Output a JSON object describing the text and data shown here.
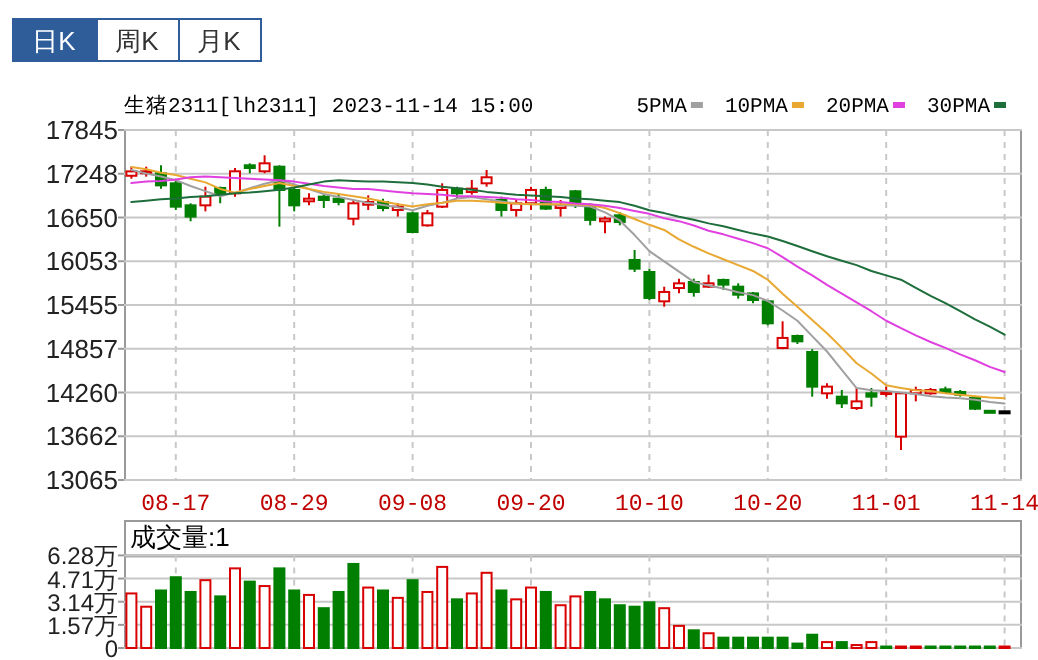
{
  "chart_data": [
    {
      "type": "candlestick",
      "title": "生猪2311[lh2311] 2023-11-14 15:00",
      "annotations": [
        "日K",
        "周K",
        "月K"
      ],
      "categories": [
        null,
        null,
        null,
        "08-17",
        null,
        null,
        null,
        null,
        null,
        null,
        null,
        "08-29",
        null,
        null,
        null,
        null,
        null,
        null,
        null,
        "09-08",
        null,
        null,
        null,
        null,
        null,
        null,
        null,
        "09-20",
        null,
        null,
        null,
        null,
        null,
        null,
        null,
        "10-10",
        null,
        null,
        null,
        null,
        null,
        null,
        null,
        "10-20",
        null,
        null,
        null,
        null,
        null,
        null,
        null,
        "11-01",
        null,
        null,
        null,
        null,
        null,
        null,
        null,
        "11-14"
      ],
      "ohlc": [
        [
          17220,
          17344,
          17180,
          17280
        ],
        [
          17254,
          17344,
          17208,
          17281
        ],
        [
          17254,
          17363,
          17044,
          17089
        ],
        [
          17117,
          17162,
          16753,
          16798
        ],
        [
          16816,
          16844,
          16598,
          16662
        ],
        [
          16816,
          17071,
          16734,
          16935
        ],
        [
          17053,
          17071,
          16844,
          16962
        ],
        [
          16980,
          17326,
          16935,
          17281
        ],
        [
          17363,
          17390,
          17254,
          17326
        ],
        [
          17281,
          17499,
          17254,
          17390
        ],
        [
          17344,
          17363,
          16525,
          17026
        ],
        [
          17026,
          17071,
          16734,
          16816
        ],
        [
          16871,
          16980,
          16816,
          16907
        ],
        [
          16935,
          16962,
          16780,
          16889
        ],
        [
          16907,
          16980,
          16816,
          16862
        ],
        [
          16634,
          16889,
          16543,
          16844
        ],
        [
          16825,
          16953,
          16753,
          16862
        ],
        [
          16862,
          16907,
          16734,
          16780
        ],
        [
          16753,
          16844,
          16662,
          16798
        ],
        [
          16707,
          16734,
          16434,
          16452
        ],
        [
          16543,
          16753,
          16525,
          16707
        ],
        [
          16798,
          17117,
          16780,
          17026
        ],
        [
          17044,
          17071,
          16907,
          16980
        ],
        [
          16998,
          17162,
          16962,
          17044
        ],
        [
          17117,
          17299,
          17071,
          17199
        ],
        [
          16889,
          16935,
          16662,
          16753
        ],
        [
          16753,
          16889,
          16662,
          16844
        ],
        [
          16844,
          17071,
          16753,
          17026
        ],
        [
          17026,
          17071,
          16753,
          16771
        ],
        [
          16780,
          16889,
          16662,
          16816
        ],
        [
          17008,
          17026,
          16780,
          16825
        ],
        [
          16798,
          16844,
          16543,
          16617
        ],
        [
          16598,
          16662,
          16434,
          16634
        ],
        [
          16680,
          16725,
          16543,
          16589
        ],
        [
          16070,
          16206,
          15906,
          15951
        ],
        [
          15906,
          15951,
          15523,
          15551
        ],
        [
          15505,
          15705,
          15432,
          15633
        ],
        [
          15687,
          15815,
          15614,
          15751
        ],
        [
          15769,
          15815,
          15569,
          15633
        ],
        [
          15705,
          15869,
          15687,
          15751
        ],
        [
          15797,
          15815,
          15660,
          15733
        ],
        [
          15705,
          15751,
          15542,
          15596
        ],
        [
          15614,
          15633,
          15478,
          15523
        ],
        [
          15505,
          15523,
          15177,
          15205
        ],
        [
          14868,
          15232,
          14852,
          15005
        ],
        [
          15032,
          15050,
          14923,
          14959
        ],
        [
          14813,
          14852,
          14203,
          14340
        ],
        [
          14249,
          14385,
          14176,
          14340
        ],
        [
          14203,
          14294,
          14048,
          14112
        ],
        [
          14048,
          14321,
          14021,
          14139
        ],
        [
          14249,
          14321,
          14066,
          14203
        ],
        [
          14249,
          14340,
          14203,
          14267
        ],
        [
          13657,
          14267,
          13475,
          14249
        ],
        [
          14249,
          14340,
          14139,
          14294
        ],
        [
          14249,
          14321,
          14230,
          14294
        ],
        [
          14303,
          14340,
          14249,
          14267
        ],
        [
          14267,
          14294,
          14203,
          14230
        ],
        [
          14185,
          14203,
          14021,
          14039
        ],
        [
          14010,
          14010,
          14003,
          14003
        ],
        [
          14003,
          14003,
          14003,
          14003
        ]
      ],
      "colors": [
        "#d80000",
        "#d80000",
        "#007f00",
        "#007f00",
        "#007f00",
        "#d80000",
        "#007f00",
        "#d80000",
        "#007f00",
        "#d80000",
        "#007f00",
        "#007f00",
        "#d80000",
        "#007f00",
        "#007f00",
        "#d80000",
        "#d80000",
        "#007f00",
        "#d80000",
        "#007f00",
        "#d80000",
        "#d80000",
        "#007f00",
        "#d80000",
        "#d80000",
        "#007f00",
        "#d80000",
        "#d80000",
        "#007f00",
        "#d80000",
        "#007f00",
        "#007f00",
        "#d80000",
        "#007f00",
        "#007f00",
        "#007f00",
        "#d80000",
        "#d80000",
        "#007f00",
        "#d80000",
        "#007f00",
        "#007f00",
        "#007f00",
        "#007f00",
        "#d80000",
        "#007f00",
        "#007f00",
        "#d80000",
        "#007f00",
        "#d80000",
        "#007f00",
        "#d80000",
        "#d80000",
        "#d80000",
        "#d80000",
        "#007f00",
        "#007f00",
        "#007f00",
        "#007f00",
        "#000000"
      ],
      "series": [
        {
          "name": "5PMA",
          "type": "line",
          "color": "#a0a0a0",
          "values": [
            17300,
            17250,
            17210,
            17160,
            17080,
            17010,
            16940,
            16990,
            17050,
            17110,
            17160,
            17100,
            17040,
            16970,
            16930,
            16890,
            16850,
            16820,
            16790,
            16750,
            16810,
            16850,
            16910,
            16930,
            16900,
            16870,
            16840,
            16830,
            16830,
            16820,
            16810,
            16800,
            16720,
            16610,
            16410,
            16190,
            16050,
            15910,
            15770,
            15720,
            15680,
            15630,
            15590,
            15510,
            15380,
            15240,
            15030,
            14820,
            14570,
            14320,
            14290,
            14280,
            14260,
            14240,
            14210,
            14190,
            14180,
            14160,
            14130,
            14110
          ]
        },
        {
          "name": "10PMA",
          "type": "line",
          "color": "#e8a831",
          "values": [
            17340,
            17310,
            17260,
            17230,
            17180,
            17130,
            17040,
            16990,
            17040,
            17080,
            17120,
            17080,
            17040,
            17000,
            16970,
            16940,
            16910,
            16870,
            16830,
            16800,
            16830,
            16850,
            16880,
            16880,
            16870,
            16850,
            16840,
            16830,
            16830,
            16830,
            16830,
            16820,
            16780,
            16710,
            16630,
            16550,
            16480,
            16350,
            16250,
            16160,
            16080,
            16000,
            15920,
            15800,
            15610,
            15430,
            15250,
            15070,
            14870,
            14660,
            14520,
            14360,
            14320,
            14290,
            14280,
            14250,
            14230,
            14210,
            14190,
            14180
          ]
        },
        {
          "name": "20PMA",
          "type": "line",
          "color": "#e040e0",
          "values": [
            17120,
            17140,
            17150,
            17170,
            17200,
            17210,
            17200,
            17190,
            17180,
            17170,
            17160,
            17140,
            17110,
            17080,
            17060,
            17040,
            17040,
            17020,
            17000,
            16980,
            16970,
            16960,
            16940,
            16940,
            16930,
            16920,
            16900,
            16890,
            16870,
            16860,
            16840,
            16830,
            16810,
            16780,
            16740,
            16700,
            16640,
            16600,
            16540,
            16470,
            16420,
            16360,
            16300,
            16230,
            16110,
            15980,
            15860,
            15730,
            15610,
            15490,
            15370,
            15240,
            15140,
            15040,
            14950,
            14870,
            14780,
            14700,
            14610,
            14540
          ]
        },
        {
          "name": "30PMA",
          "type": "line",
          "color": "#1e6e3c",
          "values": [
            16860,
            16880,
            16900,
            16910,
            16930,
            16940,
            16960,
            16980,
            16990,
            17010,
            17030,
            17060,
            17100,
            17140,
            17160,
            17150,
            17140,
            17140,
            17130,
            17120,
            17100,
            17070,
            17050,
            17030,
            17000,
            16980,
            16960,
            16950,
            16940,
            16930,
            16910,
            16900,
            16880,
            16860,
            16810,
            16750,
            16710,
            16660,
            16620,
            16570,
            16530,
            16480,
            16430,
            16390,
            16330,
            16260,
            16190,
            16120,
            16060,
            16000,
            15920,
            15860,
            15800,
            15690,
            15580,
            15480,
            15370,
            15260,
            15160,
            15050
          ]
        }
      ],
      "ylim": [
        13065,
        17845
      ],
      "yticks": [
        13065,
        13662,
        14260,
        14857,
        15455,
        16053,
        16650,
        17248,
        17845
      ],
      "grid": true,
      "legend": "top right"
    },
    {
      "type": "bar",
      "title": "成交量:1",
      "categories": [
        null,
        null,
        null,
        null,
        null,
        null,
        null,
        null,
        null,
        null,
        null,
        null,
        null,
        null,
        null,
        null,
        null,
        null,
        null,
        null,
        null,
        null,
        null,
        null,
        null,
        null,
        null,
        null,
        null,
        null,
        null,
        null,
        null,
        null,
        null,
        null,
        null,
        null,
        null,
        null,
        null,
        null,
        null,
        null,
        null,
        null,
        null,
        null,
        null,
        null,
        null,
        null,
        null,
        null,
        null,
        null,
        null,
        null,
        null,
        null
      ],
      "values": [
        3.7,
        2.8,
        3.9,
        4.8,
        3.8,
        4.6,
        3.5,
        5.4,
        4.5,
        4.2,
        5.4,
        3.9,
        3.6,
        2.7,
        3.8,
        5.7,
        4.1,
        3.9,
        3.4,
        4.6,
        3.8,
        5.5,
        3.3,
        3.7,
        5.1,
        3.9,
        3.3,
        4.1,
        3.8,
        2.9,
        3.5,
        3.8,
        3.3,
        2.9,
        2.8,
        3.1,
        2.7,
        1.5,
        1.2,
        1.0,
        0.7,
        0.7,
        0.7,
        0.7,
        0.7,
        0.3,
        0.9,
        0.4,
        0.4,
        0.2,
        0.4,
        0.1,
        0.1,
        0.1,
        0.1,
        0.1,
        0.1,
        0.1,
        0.1,
        0.1
      ],
      "colors": [
        "#d80000",
        "#d80000",
        "#007f00",
        "#007f00",
        "#007f00",
        "#d80000",
        "#007f00",
        "#d80000",
        "#007f00",
        "#d80000",
        "#007f00",
        "#007f00",
        "#d80000",
        "#007f00",
        "#007f00",
        "#007f00",
        "#d80000",
        "#007f00",
        "#d80000",
        "#007f00",
        "#d80000",
        "#d80000",
        "#007f00",
        "#d80000",
        "#d80000",
        "#007f00",
        "#d80000",
        "#d80000",
        "#007f00",
        "#d80000",
        "#d80000",
        "#007f00",
        "#007f00",
        "#007f00",
        "#007f00",
        "#007f00",
        "#d80000",
        "#d80000",
        "#007f00",
        "#d80000",
        "#007f00",
        "#007f00",
        "#007f00",
        "#007f00",
        "#007f00",
        "#007f00",
        "#007f00",
        "#d80000",
        "#007f00",
        "#d80000",
        "#d80000",
        "#007f00",
        "#d80000",
        "#d80000",
        "#007f00",
        "#007f00",
        "#007f00",
        "#007f00",
        "#007f00",
        "#d80000"
      ],
      "ylim": [
        0,
        6.28
      ],
      "yticks": [
        0,
        {
          "value": 1.57,
          "label": "1.57万"
        },
        {
          "value": 3.14,
          "label": "3.14万"
        },
        {
          "value": 4.71,
          "label": "4.71万"
        },
        {
          "value": 6.28,
          "label": "6.28万"
        }
      ],
      "grid": true,
      "tick_labels": "y"
    }
  ]
}
